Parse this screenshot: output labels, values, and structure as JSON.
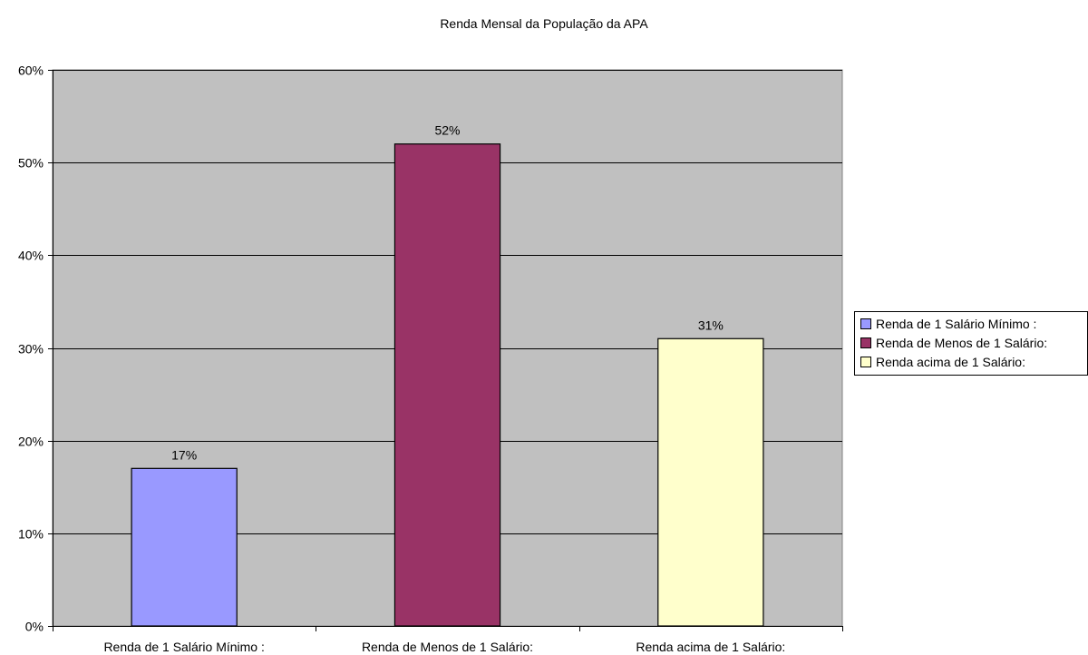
{
  "chart_data": {
    "type": "bar",
    "title": "Renda Mensal da População da APA",
    "categories": [
      "Renda de 1 Salário Mínimo :",
      "Renda de Menos de 1 Salário:",
      "Renda acima de 1 Salário:"
    ],
    "values": [
      17,
      52,
      31
    ],
    "value_labels": [
      "17%",
      "52%",
      "31%"
    ],
    "colors": [
      "#9999ff",
      "#993366",
      "#ffffcc"
    ],
    "ylim": [
      0,
      60
    ],
    "yticks": [
      0,
      10,
      20,
      30,
      40,
      50,
      60
    ],
    "ytick_labels": [
      "0%",
      "10%",
      "20%",
      "30%",
      "40%",
      "50%",
      "60%"
    ],
    "xlabel": "",
    "ylabel": "",
    "grid": true,
    "plot_background": "#c0c0c0",
    "legend": {
      "position": "right",
      "entries": [
        "Renda de 1 Salário Mínimo :",
        "Renda de Menos de 1 Salário:",
        "Renda acima de 1 Salário:"
      ]
    }
  }
}
